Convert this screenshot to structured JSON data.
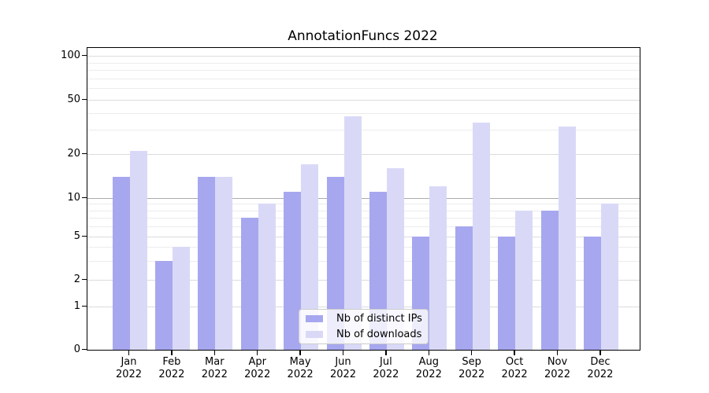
{
  "chart_data": {
    "type": "bar",
    "title": "AnnotationFuncs 2022",
    "year_label": "2022",
    "categories": [
      "Jan",
      "Feb",
      "Mar",
      "Apr",
      "May",
      "Jun",
      "Jul",
      "Aug",
      "Sep",
      "Oct",
      "Nov",
      "Dec"
    ],
    "series": [
      {
        "name": "Nb of distinct IPs",
        "color": "#a7a7ef",
        "values": [
          14,
          3,
          14,
          7,
          11,
          14,
          11,
          5,
          6,
          5,
          8,
          5
        ]
      },
      {
        "name": "Nb of downloads",
        "color": "#d9d9f7",
        "values": [
          21,
          4,
          14,
          9,
          17,
          38,
          16,
          12,
          34,
          8,
          32,
          9
        ]
      }
    ],
    "xlabel": "",
    "ylabel": "",
    "yscale": "symlog",
    "yticks": [
      0,
      1,
      2,
      5,
      10,
      20,
      50,
      100
    ],
    "minor_yticks": [
      3,
      4,
      6,
      7,
      8,
      9,
      30,
      40,
      60,
      70,
      80,
      90
    ],
    "ylim": [
      0,
      115
    ],
    "grid": true,
    "legend_position": "lower center"
  }
}
